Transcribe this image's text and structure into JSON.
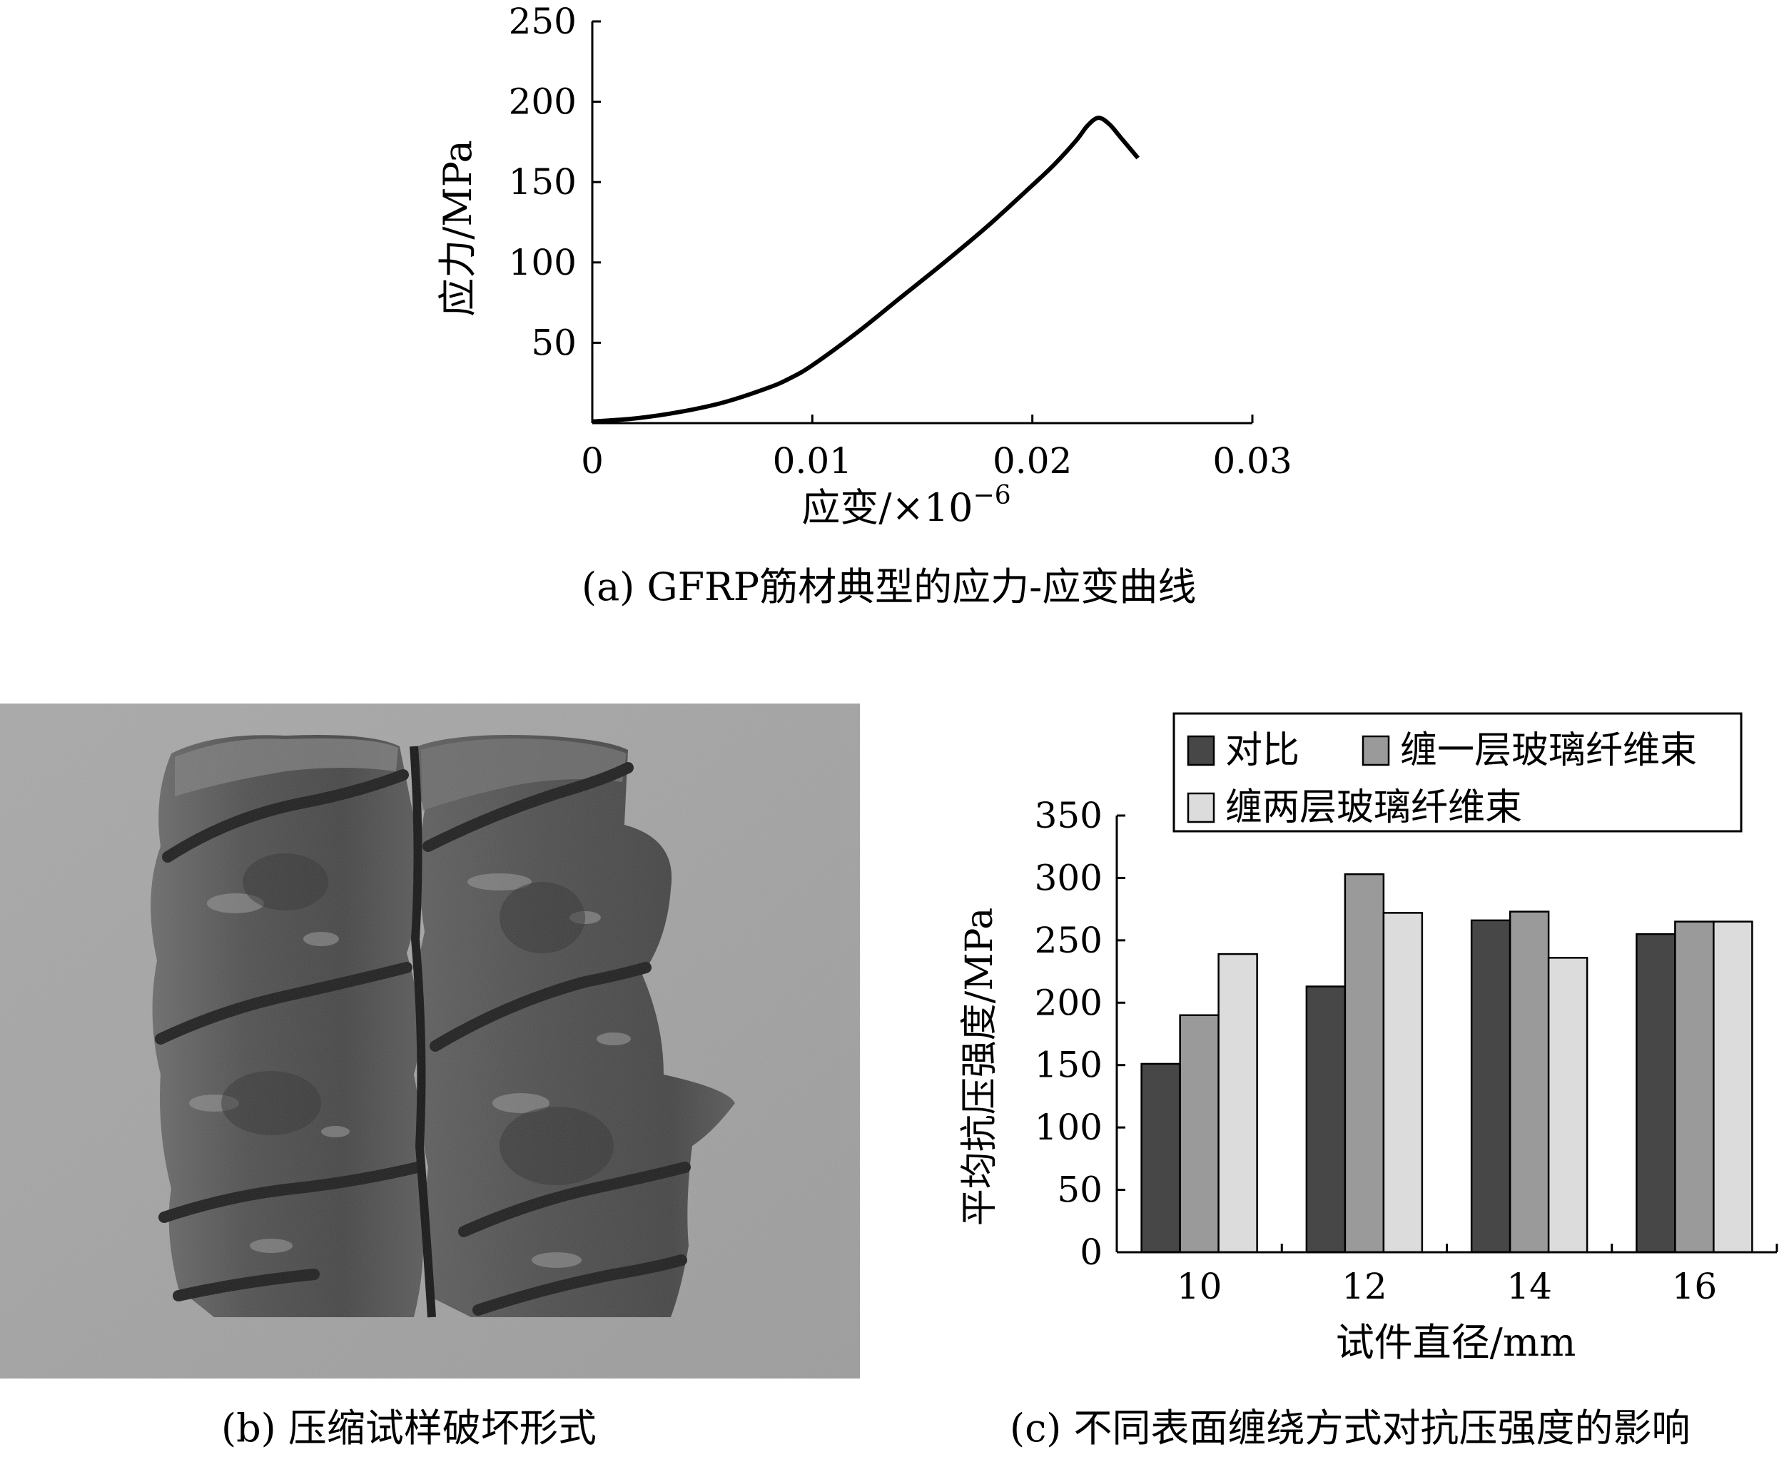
{
  "chart_data": [
    {
      "type": "line",
      "title": "",
      "xlabel": "应变/×10",
      "xlabel_sup": "−6",
      "ylabel": "应力/MPa",
      "xlim": [
        0,
        0.03
      ],
      "ylim": [
        0,
        250
      ],
      "x_ticks": [
        0,
        0.01,
        0.02,
        0.03
      ],
      "x_tick_labels": [
        "0",
        "0.01",
        "0.02",
        "0.03"
      ],
      "y_ticks": [
        50,
        100,
        150,
        200,
        250
      ],
      "y_tick_labels": [
        "50",
        "100",
        "150",
        "200",
        "250"
      ],
      "grid": false,
      "series": [
        {
          "x": [
            0,
            0.002,
            0.004,
            0.006,
            0.008,
            0.009,
            0.01,
            0.012,
            0.014,
            0.016,
            0.018,
            0.02,
            0.021,
            0.022,
            0.0225,
            0.023,
            0.0235,
            0.024,
            0.0248
          ],
          "y": [
            1,
            3,
            7,
            13,
            22,
            28,
            36,
            56,
            78,
            100,
            123,
            148,
            161,
            176,
            185,
            190,
            186,
            178,
            165
          ]
        }
      ],
      "color": "#000000"
    },
    {
      "type": "bar",
      "title": "",
      "xlabel": "试件直径/mm",
      "ylabel": "平均抗压强度/MPa",
      "ylim": [
        0,
        350
      ],
      "y_ticks": [
        0,
        50,
        100,
        150,
        200,
        250,
        300,
        350
      ],
      "categories": [
        "10",
        "12",
        "14",
        "16"
      ],
      "legend_position": "top",
      "grid": false,
      "series": [
        {
          "name": "对比",
          "values": [
            151,
            213,
            266,
            255
          ],
          "color": "#474747"
        },
        {
          "name": "缠一层玻璃纤维束",
          "values": [
            190,
            303,
            273,
            265
          ],
          "color": "#9a9a9a"
        },
        {
          "name": "缠两层玻璃纤维束",
          "values": [
            239,
            272,
            236,
            265
          ],
          "color": "#dcdcdc"
        }
      ]
    }
  ],
  "captions": {
    "a": "(a) GFRP筋材典型的应力-应变曲线",
    "b": "(b) 压缩试样破坏形式",
    "c": "(c) 不同表面缠绕方式对抗压强度的影响"
  },
  "photo_colors": {
    "background": "#a6a6a6",
    "specimen": "#4a4a4a",
    "specimen_highlight": "#8a8a8a",
    "groove": "#1e1e1e"
  }
}
